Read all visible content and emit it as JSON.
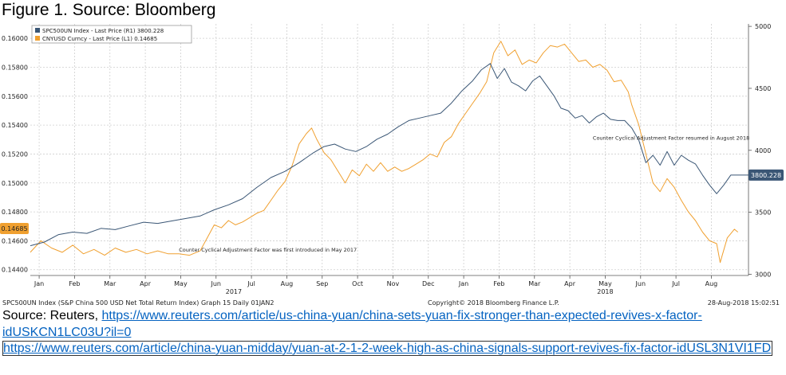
{
  "figure_title": "Figure 1. Source: Bloomberg",
  "footer": {
    "left": "SPC500UN Index (S&P China 500 USD Net Total Return Index) Graph 15  Daily 01JAN2",
    "center": "Copyright© 2018 Bloomberg Finance L.P.",
    "right": "28-Aug-2018 15:02:51"
  },
  "source": {
    "prefix": "Source: Reuters,",
    "link1": "https://www.reuters.com/article/us-china-yuan/china-sets-yuan-fix-stronger-than-expected-revives-x-factor-idUSKCN1LC03U?il=0",
    "link2": "https://www.reuters.com/article/china-yuan-midday/yuan-at-2-1-2-week-high-as-china-signals-support-revives-fix-factor-idUSL3N1VI1FD"
  },
  "chart_data": {
    "type": "line",
    "x_unit": "months since 1 Jan 2017",
    "xlim": [
      0,
      20.3
    ],
    "x_ticks": [
      {
        "pos": 0.25,
        "label": "Jan"
      },
      {
        "pos": 1.25,
        "label": "Feb"
      },
      {
        "pos": 2.25,
        "label": "Mar"
      },
      {
        "pos": 3.25,
        "label": "Apr"
      },
      {
        "pos": 4.25,
        "label": "May"
      },
      {
        "pos": 5.25,
        "label": "Jun"
      },
      {
        "pos": 6.25,
        "label": "Jul"
      },
      {
        "pos": 7.25,
        "label": "Aug"
      },
      {
        "pos": 8.25,
        "label": "Sep"
      },
      {
        "pos": 9.25,
        "label": "Oct"
      },
      {
        "pos": 10.25,
        "label": "Nov"
      },
      {
        "pos": 11.25,
        "label": "Dec"
      },
      {
        "pos": 12.25,
        "label": "Jan"
      },
      {
        "pos": 13.25,
        "label": "Feb"
      },
      {
        "pos": 14.25,
        "label": "Mar"
      },
      {
        "pos": 15.25,
        "label": "Apr"
      },
      {
        "pos": 16.25,
        "label": "May"
      },
      {
        "pos": 17.25,
        "label": "Jun"
      },
      {
        "pos": 18.25,
        "label": "Jul"
      },
      {
        "pos": 19.25,
        "label": "Aug"
      }
    ],
    "year_labels": [
      {
        "pos": 5.75,
        "label": "2017"
      },
      {
        "pos": 16.25,
        "label": "2018"
      }
    ],
    "left_axis": {
      "lim": [
        0.1436,
        0.161
      ],
      "ticks": [
        0.144,
        0.146,
        0.148,
        0.15,
        0.152,
        0.154,
        0.156,
        0.158,
        0.16
      ],
      "tick_labels": [
        "0.14400",
        "0.14600",
        "0.14800",
        "0.15000",
        "0.15200",
        "0.15400",
        "0.15600",
        "0.15800",
        "0.16000"
      ]
    },
    "right_axis": {
      "lim": [
        2990,
        5020
      ],
      "ticks": [
        3000,
        3500,
        4000,
        4500,
        5000
      ],
      "tick_labels": [
        "3000",
        "3500",
        "4000",
        "4500",
        "5000"
      ]
    },
    "grid": true,
    "legend_position": "top-left",
    "series": [
      {
        "name": "SPC500UN Index - Last Price (R1) 3800.228",
        "axis": "right",
        "color": "#3a5675",
        "last_value_label": "3800.228",
        "points": [
          [
            0,
            3230
          ],
          [
            0.4,
            3260
          ],
          [
            0.8,
            3320
          ],
          [
            1.2,
            3340
          ],
          [
            1.6,
            3330
          ],
          [
            2.0,
            3370
          ],
          [
            2.4,
            3360
          ],
          [
            2.8,
            3390
          ],
          [
            3.2,
            3420
          ],
          [
            3.6,
            3410
          ],
          [
            4.0,
            3430
          ],
          [
            4.4,
            3450
          ],
          [
            4.8,
            3470
          ],
          [
            5.2,
            3520
          ],
          [
            5.6,
            3560
          ],
          [
            6.0,
            3610
          ],
          [
            6.4,
            3700
          ],
          [
            6.8,
            3780
          ],
          [
            7.2,
            3830
          ],
          [
            7.6,
            3900
          ],
          [
            8.0,
            3980
          ],
          [
            8.3,
            4030
          ],
          [
            8.6,
            4050
          ],
          [
            8.9,
            4010
          ],
          [
            9.2,
            3990
          ],
          [
            9.5,
            4030
          ],
          [
            9.8,
            4090
          ],
          [
            10.1,
            4130
          ],
          [
            10.4,
            4190
          ],
          [
            10.7,
            4240
          ],
          [
            11.0,
            4260
          ],
          [
            11.3,
            4280
          ],
          [
            11.6,
            4300
          ],
          [
            11.9,
            4380
          ],
          [
            12.2,
            4480
          ],
          [
            12.5,
            4560
          ],
          [
            12.75,
            4650
          ],
          [
            13.0,
            4700
          ],
          [
            13.2,
            4580
          ],
          [
            13.4,
            4660
          ],
          [
            13.6,
            4550
          ],
          [
            13.8,
            4520
          ],
          [
            14.0,
            4480
          ],
          [
            14.2,
            4560
          ],
          [
            14.4,
            4600
          ],
          [
            14.6,
            4520
          ],
          [
            14.8,
            4440
          ],
          [
            15.0,
            4340
          ],
          [
            15.2,
            4320
          ],
          [
            15.4,
            4260
          ],
          [
            15.6,
            4280
          ],
          [
            15.8,
            4220
          ],
          [
            16.0,
            4270
          ],
          [
            16.2,
            4300
          ],
          [
            16.4,
            4250
          ],
          [
            16.6,
            4240
          ],
          [
            16.8,
            4240
          ],
          [
            17.0,
            4180
          ],
          [
            17.2,
            4080
          ],
          [
            17.4,
            3900
          ],
          [
            17.6,
            3960
          ],
          [
            17.8,
            3880
          ],
          [
            18.0,
            3990
          ],
          [
            18.2,
            3880
          ],
          [
            18.4,
            3960
          ],
          [
            18.6,
            3920
          ],
          [
            18.8,
            3890
          ],
          [
            19.0,
            3800
          ],
          [
            19.2,
            3720
          ],
          [
            19.4,
            3650
          ],
          [
            19.6,
            3720
          ],
          [
            19.8,
            3800
          ],
          [
            20.3,
            3800
          ]
        ]
      },
      {
        "name": "CNYUSD Curncy - Last Price (L1) 0.14685",
        "axis": "left",
        "color": "#f0a030",
        "last_value_label": "0.14685",
        "points": [
          [
            0,
            0.1452
          ],
          [
            0.3,
            0.146
          ],
          [
            0.6,
            0.1455
          ],
          [
            0.9,
            0.1452
          ],
          [
            1.2,
            0.1457
          ],
          [
            1.5,
            0.1451
          ],
          [
            1.8,
            0.1454
          ],
          [
            2.1,
            0.145
          ],
          [
            2.4,
            0.1455
          ],
          [
            2.7,
            0.1452
          ],
          [
            3.0,
            0.1454
          ],
          [
            3.3,
            0.1451
          ],
          [
            3.6,
            0.1453
          ],
          [
            3.9,
            0.1451
          ],
          [
            4.2,
            0.1451
          ],
          [
            4.5,
            0.145
          ],
          [
            4.8,
            0.1453
          ],
          [
            5.0,
            0.1462
          ],
          [
            5.2,
            0.1471
          ],
          [
            5.4,
            0.1469
          ],
          [
            5.6,
            0.1474
          ],
          [
            5.8,
            0.1471
          ],
          [
            6.0,
            0.1473
          ],
          [
            6.2,
            0.1476
          ],
          [
            6.4,
            0.1479
          ],
          [
            6.6,
            0.1481
          ],
          [
            6.8,
            0.1488
          ],
          [
            7.0,
            0.1495
          ],
          [
            7.2,
            0.1501
          ],
          [
            7.4,
            0.1512
          ],
          [
            7.6,
            0.1527
          ],
          [
            7.8,
            0.1534
          ],
          [
            7.95,
            0.1538
          ],
          [
            8.1,
            0.153
          ],
          [
            8.3,
            0.1521
          ],
          [
            8.5,
            0.1516
          ],
          [
            8.7,
            0.1508
          ],
          [
            8.9,
            0.15
          ],
          [
            9.1,
            0.1509
          ],
          [
            9.3,
            0.1505
          ],
          [
            9.5,
            0.1513
          ],
          [
            9.7,
            0.1508
          ],
          [
            9.9,
            0.1514
          ],
          [
            10.1,
            0.1508
          ],
          [
            10.3,
            0.1511
          ],
          [
            10.5,
            0.1508
          ],
          [
            10.7,
            0.151
          ],
          [
            10.9,
            0.1513
          ],
          [
            11.1,
            0.1516
          ],
          [
            11.3,
            0.152
          ],
          [
            11.5,
            0.1518
          ],
          [
            11.7,
            0.1528
          ],
          [
            11.9,
            0.1532
          ],
          [
            12.1,
            0.1541
          ],
          [
            12.3,
            0.1548
          ],
          [
            12.5,
            0.1555
          ],
          [
            12.7,
            0.1562
          ],
          [
            12.9,
            0.157
          ],
          [
            13.1,
            0.159
          ],
          [
            13.3,
            0.1598
          ],
          [
            13.5,
            0.1588
          ],
          [
            13.7,
            0.1592
          ],
          [
            13.9,
            0.1582
          ],
          [
            14.1,
            0.1585
          ],
          [
            14.3,
            0.1583
          ],
          [
            14.5,
            0.159
          ],
          [
            14.7,
            0.1595
          ],
          [
            14.9,
            0.1594
          ],
          [
            15.1,
            0.1596
          ],
          [
            15.3,
            0.159
          ],
          [
            15.5,
            0.1584
          ],
          [
            15.7,
            0.1585
          ],
          [
            15.9,
            0.158
          ],
          [
            16.1,
            0.1582
          ],
          [
            16.3,
            0.1578
          ],
          [
            16.5,
            0.157
          ],
          [
            16.7,
            0.1571
          ],
          [
            16.9,
            0.1563
          ],
          [
            17.0,
            0.1554
          ],
          [
            17.2,
            0.154
          ],
          [
            17.4,
            0.152
          ],
          [
            17.6,
            0.15
          ],
          [
            17.8,
            0.1494
          ],
          [
            18.0,
            0.1503
          ],
          [
            18.2,
            0.1497
          ],
          [
            18.4,
            0.1488
          ],
          [
            18.6,
            0.148
          ],
          [
            18.8,
            0.1474
          ],
          [
            19.0,
            0.1466
          ],
          [
            19.2,
            0.146
          ],
          [
            19.4,
            0.1458
          ],
          [
            19.5,
            0.1445
          ],
          [
            19.7,
            0.1462
          ],
          [
            19.9,
            0.1468
          ],
          [
            20.0,
            0.1466
          ]
        ]
      }
    ],
    "annotations": [
      {
        "text": "Counter Cyclical Adjustment Factor was first introduced in May 2017",
        "x": 4.2,
        "y_left": 0.14525
      },
      {
        "text": "Counter Cyclical Adjustment Factor resumed in August 2018",
        "x": 15.9,
        "y_left": 0.153
      }
    ]
  }
}
